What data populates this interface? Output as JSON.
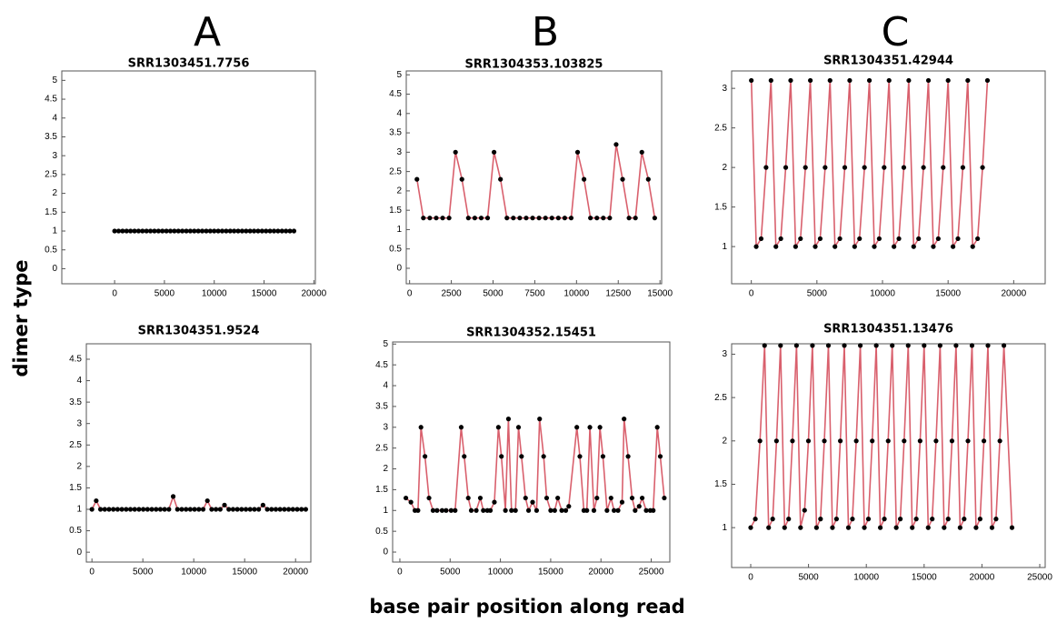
{
  "columns": [
    "A",
    "B",
    "C"
  ],
  "ylabel": "dimer type",
  "xlabel": "base pair position along read",
  "chart_data": [
    {
      "type": "line",
      "title": "SRR1303451.7756",
      "color": "#d9606d",
      "marker_color": "#000000",
      "xlim": [
        -5300,
        20150
      ],
      "ylim": [
        -0.4,
        5.25
      ],
      "xticks": [
        0,
        5000,
        10000,
        15000,
        20000
      ],
      "yticks": [
        0,
        0.5,
        1,
        1.5,
        2,
        2.5,
        3,
        3.5,
        4,
        4.5,
        5
      ],
      "x": [
        0,
        400,
        800,
        1200,
        1600,
        2000,
        2400,
        2800,
        3200,
        3600,
        4000,
        4400,
        4800,
        5200,
        5600,
        6000,
        6400,
        6800,
        7200,
        7600,
        8000,
        8400,
        8800,
        9200,
        9600,
        10000,
        10400,
        10800,
        11200,
        11600,
        12000,
        12400,
        12800,
        13200,
        13600,
        14000,
        14400,
        14800,
        15200,
        15600,
        16000,
        16400,
        16800,
        17200,
        17600,
        18000
      ],
      "values": [
        1,
        1,
        1,
        1,
        1,
        1,
        1,
        1,
        1,
        1,
        1,
        1,
        1,
        1,
        1,
        1,
        1,
        1,
        1,
        1,
        1,
        1,
        1,
        1,
        1,
        1,
        1,
        1,
        1,
        1,
        1,
        1,
        1,
        1,
        1,
        1,
        1,
        1,
        1,
        1,
        1,
        1,
        1,
        1,
        1,
        1
      ]
    },
    {
      "type": "line",
      "title": "SRR1304353.103825",
      "color": "#d9606d",
      "marker_color": "#000000",
      "xlim": [
        -200,
        15100
      ],
      "ylim": [
        -0.4,
        5.1
      ],
      "xticks": [
        0,
        2500,
        5000,
        7500,
        10000,
        12500,
        15000
      ],
      "yticks": [
        0,
        0.5,
        1,
        1.5,
        2,
        2.5,
        3,
        3.5,
        4,
        4.5,
        5
      ],
      "x": [
        440,
        825,
        1210,
        1595,
        1980,
        2365,
        2750,
        3135,
        3520,
        3905,
        4290,
        4675,
        5060,
        5445,
        5830,
        6215,
        6600,
        6985,
        7370,
        7755,
        8140,
        8525,
        8910,
        9295,
        9680,
        10065,
        10450,
        10835,
        11220,
        11605,
        11990,
        12375,
        12760,
        13145,
        13530,
        13915,
        14300,
        14685
      ],
      "values": [
        2.3,
        1.3,
        1.3,
        1.3,
        1.3,
        1.3,
        3.0,
        2.3,
        1.3,
        1.3,
        1.3,
        1.3,
        3.0,
        2.3,
        1.3,
        1.3,
        1.3,
        1.3,
        1.3,
        1.3,
        1.3,
        1.3,
        1.3,
        1.3,
        1.3,
        3.0,
        2.3,
        1.3,
        1.3,
        1.3,
        1.3,
        3.2,
        2.3,
        1.3,
        1.3,
        3.0,
        2.3,
        1.3
      ]
    },
    {
      "type": "line",
      "title": "SRR1304351.42944",
      "color": "#d9606d",
      "marker_color": "#000000",
      "xlim": [
        -1500,
        22400
      ],
      "ylim": [
        0.53,
        3.22
      ],
      "xticks": [
        0,
        5000,
        10000,
        15000,
        20000
      ],
      "yticks": [
        1,
        1.5,
        2,
        2.5,
        3
      ],
      "x": [
        0,
        375,
        750,
        1125,
        1500,
        1875,
        2250,
        2625,
        3000,
        3375,
        3750,
        4125,
        4500,
        4875,
        5250,
        5625,
        6000,
        6375,
        6750,
        7125,
        7500,
        7875,
        8250,
        8625,
        9000,
        9375,
        9750,
        10125,
        10500,
        10875,
        11250,
        11625,
        12000,
        12375,
        12750,
        13125,
        13500,
        13875,
        14250,
        14625,
        15000,
        15375,
        15750,
        16125,
        16500,
        16875,
        17250,
        17625,
        18000
      ],
      "values": [
        3.1,
        1.0,
        1.1,
        2.0,
        3.1,
        1.0,
        1.1,
        2.0,
        3.1,
        1.0,
        1.1,
        2.0,
        3.1,
        1.0,
        1.1,
        2.0,
        3.1,
        1.0,
        1.1,
        2.0,
        3.1,
        1.0,
        1.1,
        2.0,
        3.1,
        1.0,
        1.1,
        2.0,
        3.1,
        1.0,
        1.1,
        2.0,
        3.1,
        1.0,
        1.1,
        2.0,
        3.1,
        1.0,
        1.1,
        2.0,
        3.1,
        1.0,
        1.1,
        2.0,
        3.1,
        1.0,
        1.1,
        2.0,
        3.1
      ]
    },
    {
      "type": "line",
      "title": "SRR1304351.9524",
      "color": "#d9606d",
      "marker_color": "#000000",
      "xlim": [
        -550,
        21500
      ],
      "ylim": [
        -0.23,
        4.86
      ],
      "xticks": [
        0,
        5000,
        10000,
        15000,
        20000
      ],
      "yticks": [
        0,
        0.5,
        1,
        1.5,
        2,
        2.5,
        3,
        3.5,
        4,
        4.5
      ],
      "x": [
        0,
        420,
        840,
        1260,
        1680,
        2100,
        2520,
        2940,
        3360,
        3780,
        4200,
        4620,
        5040,
        5460,
        5880,
        6300,
        6720,
        7140,
        7560,
        7980,
        8400,
        8820,
        9240,
        9660,
        10080,
        10500,
        10920,
        11340,
        11760,
        12180,
        12600,
        13020,
        13440,
        13860,
        14280,
        14700,
        15120,
        15540,
        15960,
        16380,
        16800,
        17220,
        17640,
        18060,
        18480,
        18900,
        19320,
        19740,
        20160,
        20580,
        21000
      ],
      "values": [
        1.0,
        1.2,
        1.0,
        1.0,
        1.0,
        1.0,
        1.0,
        1.0,
        1.0,
        1.0,
        1.0,
        1.0,
        1.0,
        1.0,
        1.0,
        1.0,
        1.0,
        1.0,
        1.0,
        1.3,
        1.0,
        1.0,
        1.0,
        1.0,
        1.0,
        1.0,
        1.0,
        1.2,
        1.0,
        1.0,
        1.0,
        1.1,
        1.0,
        1.0,
        1.0,
        1.0,
        1.0,
        1.0,
        1.0,
        1.0,
        1.1,
        1.0,
        1.0,
        1.0,
        1.0,
        1.0,
        1.0,
        1.0,
        1.0,
        1.0,
        1.0
      ]
    },
    {
      "type": "line",
      "title": "SRR1304352.15451",
      "color": "#d9606d",
      "marker_color": "#000000",
      "xlim": [
        -720,
        26850
      ],
      "ylim": [
        -0.24,
        5.05
      ],
      "xticks": [
        0,
        5000,
        10000,
        15000,
        20000,
        25000
      ],
      "yticks": [
        0,
        0.5,
        1,
        1.5,
        2,
        2.5,
        3,
        3.5,
        4,
        4.5,
        5
      ],
      "x": [
        600,
        1100,
        1500,
        1800,
        2100,
        2500,
        2900,
        3300,
        3700,
        4200,
        4600,
        5100,
        5500,
        6100,
        6400,
        6800,
        7100,
        7600,
        8000,
        8300,
        8700,
        9000,
        9400,
        9800,
        10100,
        10500,
        10800,
        11100,
        11500,
        11800,
        12100,
        12500,
        12800,
        13200,
        13600,
        13900,
        14300,
        14600,
        15000,
        15400,
        15700,
        16100,
        16500,
        16800,
        17600,
        17900,
        18300,
        18600,
        18900,
        19300,
        19600,
        19900,
        20200,
        20600,
        21000,
        21300,
        21700,
        22100,
        22300,
        22700,
        23100,
        23400,
        23800,
        24100,
        24500,
        24900,
        25200,
        25600,
        25900,
        26300
      ],
      "values": [
        1.3,
        1.2,
        1.0,
        1.0,
        3.0,
        2.3,
        1.3,
        1.0,
        1.0,
        1.0,
        1.0,
        1.0,
        1.0,
        3.0,
        2.3,
        1.3,
        1.0,
        1.0,
        1.3,
        1.0,
        1.0,
        1.0,
        1.2,
        3.0,
        2.3,
        1.0,
        3.2,
        1.0,
        1.0,
        3.0,
        2.3,
        1.3,
        1.0,
        1.2,
        1.0,
        3.2,
        2.3,
        1.3,
        1.0,
        1.0,
        1.3,
        1.0,
        1.0,
        1.1,
        3.0,
        2.3,
        1.0,
        1.0,
        3.0,
        1.0,
        1.3,
        3.0,
        2.3,
        1.0,
        1.3,
        1.0,
        1.0,
        1.2,
        3.2,
        2.3,
        1.3,
        1.0,
        1.1,
        1.3,
        1.0,
        1.0,
        1.0,
        3.0,
        2.3,
        1.3
      ]
    },
    {
      "type": "line",
      "title": "SRR1304351.13476",
      "color": "#d9606d",
      "marker_color": "#000000",
      "xlim": [
        -1650,
        25470
      ],
      "ylim": [
        0.54,
        3.12
      ],
      "xticks": [
        0,
        5000,
        10000,
        15000,
        20000,
        25000
      ],
      "yticks": [
        1,
        1.5,
        2,
        2.5,
        3
      ],
      "x": [
        0,
        400,
        800,
        1200,
        1550,
        1900,
        2230,
        2580,
        2930,
        3280,
        3610,
        3960,
        4310,
        4660,
        4990,
        5340,
        5690,
        6040,
        6370,
        6720,
        7070,
        7420,
        7750,
        8100,
        8450,
        8800,
        9130,
        9480,
        9830,
        10180,
        10510,
        10860,
        11210,
        11560,
        11890,
        12240,
        12590,
        12940,
        13270,
        13620,
        13970,
        14320,
        14650,
        15000,
        15350,
        15700,
        16030,
        16380,
        16730,
        17080,
        17410,
        17760,
        18110,
        18460,
        18790,
        19140,
        19490,
        19840,
        20170,
        20520,
        20870,
        21220,
        21550,
        21900,
        22600
      ],
      "values": [
        1.0,
        1.1,
        2.0,
        3.1,
        1.0,
        1.1,
        2.0,
        3.1,
        1.0,
        1.1,
        2.0,
        3.1,
        1.0,
        1.2,
        2.0,
        3.1,
        1.0,
        1.1,
        2.0,
        3.1,
        1.0,
        1.1,
        2.0,
        3.1,
        1.0,
        1.1,
        2.0,
        3.1,
        1.0,
        1.1,
        2.0,
        3.1,
        1.0,
        1.1,
        2.0,
        3.1,
        1.0,
        1.1,
        2.0,
        3.1,
        1.0,
        1.1,
        2.0,
        3.1,
        1.0,
        1.1,
        2.0,
        3.1,
        1.0,
        1.1,
        2.0,
        3.1,
        1.0,
        1.1,
        2.0,
        3.1,
        1.0,
        1.1,
        2.0,
        3.1,
        1.0,
        1.1,
        2.0,
        3.1,
        1.0
      ]
    }
  ]
}
